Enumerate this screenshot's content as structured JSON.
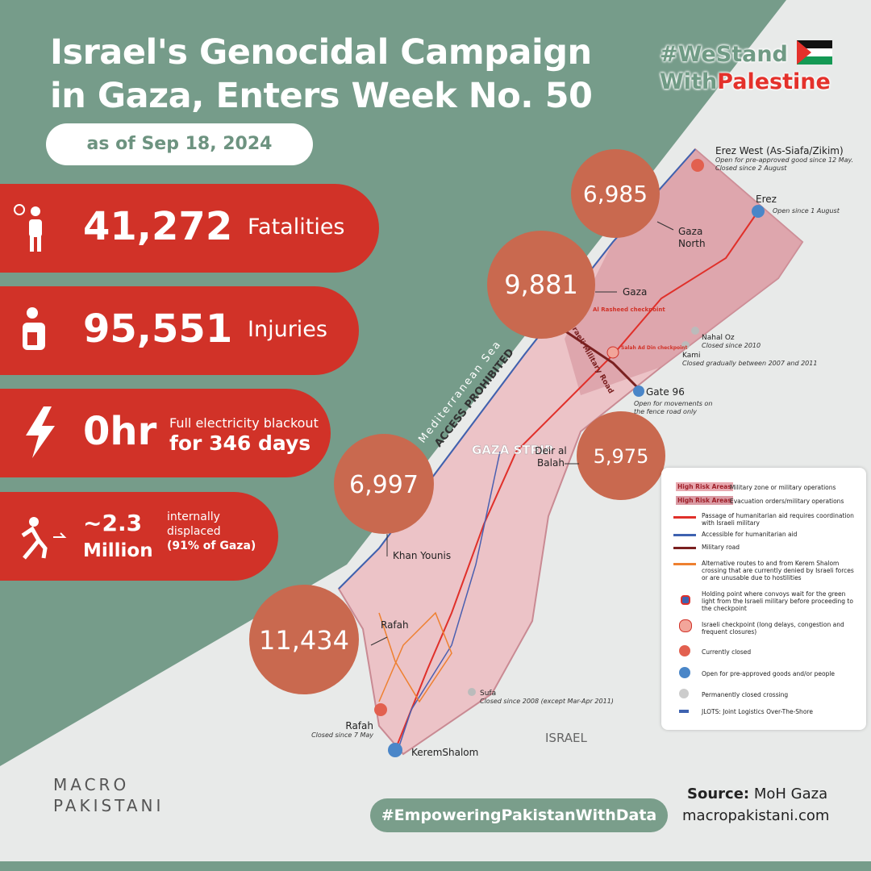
{
  "header": {
    "title_lines": [
      "Israel's Genocidal Campaign",
      "in Gaza, Enters Week No. 50"
    ],
    "date": "as of Sep 18, 2024",
    "badge": {
      "line1": "#WeStand",
      "line2a": "With",
      "line2b": "Palestine"
    }
  },
  "stats": [
    {
      "value": "41,272",
      "label": "Fatalities"
    },
    {
      "value": "95,551",
      "label": "Injuries"
    },
    {
      "value": "0hr",
      "label_lines": [
        "Full electricity blackout",
        "for 346 days"
      ]
    },
    {
      "value": "~2.3",
      "unit": "Million",
      "label_lines": [
        "internally",
        "displaced",
        "(91% of Gaza)"
      ]
    }
  ],
  "map": {
    "regions": [
      {
        "name": "Gaza North",
        "count": "6,985"
      },
      {
        "name": "Gaza",
        "count": "9,881"
      },
      {
        "name": "Deir al Balah",
        "count": "5,975"
      },
      {
        "name": "Khan Younis",
        "count": "6,997"
      },
      {
        "name": "Rafah",
        "count": "11,434"
      }
    ],
    "labels": {
      "sea": "Mediterranean Sea",
      "access": "ACCESS PROHIBITED",
      "strip": "GAZA STRIP",
      "israel": "ISRAEL",
      "military_road": "Israeli Military Road",
      "rasheed_checkpoint": "Al Rasheed checkpoint",
      "salah_checkpoint": "Salah Ad Din checkpoint"
    },
    "crossings": [
      {
        "name": "Erez West (As-Siafa/Zikim)",
        "note_lines": [
          "Open for pre-approved good since 12 May.",
          "Closed since 2 August"
        ]
      },
      {
        "name": "Erez",
        "note_lines": [
          "Open since 1 August"
        ]
      },
      {
        "name": "Nahal Oz",
        "note_lines": [
          "Closed since 2010"
        ]
      },
      {
        "name": "Kami",
        "note_lines": [
          "Closed gradually between 2007 and 2011"
        ]
      },
      {
        "name": "Gate 96",
        "note_lines": [
          "Open for movements on",
          "the fence road only"
        ]
      },
      {
        "name": "Sufa",
        "note_lines": [
          "Closed since  2008 (except Mar-Apr 2011)"
        ]
      },
      {
        "name": "Rafah",
        "note_lines": [
          "Closed since 7 May"
        ]
      },
      {
        "name": "KeremShalom",
        "note_lines": []
      }
    ]
  },
  "legend": {
    "items": [
      {
        "tag": "High Risk Areas",
        "text": "Military zone or military operations"
      },
      {
        "tag": "High Risk Areas",
        "text": "Evacuation orders/military operations"
      },
      {
        "text": "Passage of humanitarian aid requires coordination with Israeli military"
      },
      {
        "text": "Accessible for humanitarian aid"
      },
      {
        "text": "Military road"
      },
      {
        "text": "Alternative routes to and from Kerem Shalom crossing that are currently denied by Israeli forces or are unusable due to hostilities"
      },
      {
        "text": "Holding point where convoys wait for the green light from the Israeli military before proceeding to the checkpoint"
      },
      {
        "text": "Israeli checkpoint (long delays, congestion and frequent closures)"
      },
      {
        "text": "Currently closed"
      },
      {
        "text": "Open for pre-approved goods and/or people"
      },
      {
        "text": "Permanently closed crossing"
      },
      {
        "text": "JLOTS: Joint Logistics Over-The-Shore"
      }
    ]
  },
  "footer": {
    "logo_lines": [
      "MACRO",
      "PAKISTANI"
    ],
    "hashtag": "#EmpoweringPakistanWithData",
    "source_label": "Source:",
    "source": "MoH Gaza",
    "website": "macropakistani.com"
  }
}
